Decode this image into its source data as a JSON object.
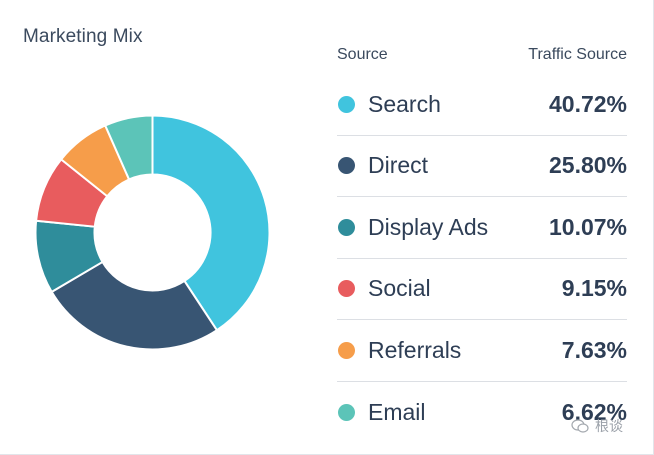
{
  "chart_data": {
    "type": "pie",
    "title": "Marketing Mix",
    "legend_header": {
      "source": "Source",
      "value": "Traffic Source"
    },
    "categories": [
      "Search",
      "Direct",
      "Display Ads",
      "Social",
      "Referrals",
      "Email"
    ],
    "values": [
      40.72,
      25.8,
      10.07,
      9.15,
      7.63,
      6.62
    ],
    "value_labels": [
      "40.72%",
      "25.80%",
      "10.07%",
      "9.15%",
      "7.63%",
      "6.62%"
    ],
    "colors": [
      "#40c4de",
      "#385573",
      "#2f8d9b",
      "#e85c5e",
      "#f69d4a",
      "#5cc4b8"
    ],
    "donut": true,
    "legend_placement": "right"
  },
  "watermark": {
    "text": "根谈",
    "icon": "wechat-icon"
  }
}
